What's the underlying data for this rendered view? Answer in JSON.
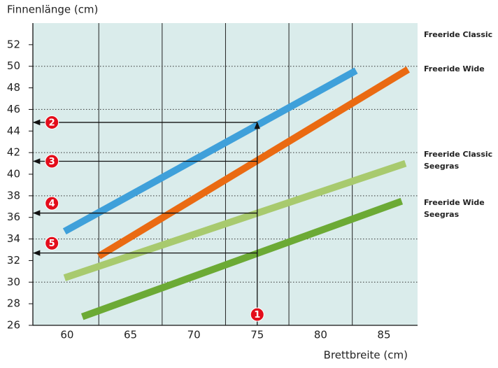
{
  "chart_data": {
    "type": "line",
    "ylabel": "Finnenlänge (cm)",
    "xlabel": "Brettbreite (cm)",
    "series": [
      {
        "name": "Freeride Classic",
        "color": "#3fa0da",
        "x": [
          59.8,
          82.8
        ],
        "values": [
          34.7,
          49.6
        ]
      },
      {
        "name": "Freeride Wide",
        "color": "#ea6a12",
        "x": [
          62.5,
          86.9
        ],
        "values": [
          32.4,
          49.7
        ]
      },
      {
        "name": "Freeride Classic Seegras",
        "color": "#a8ca6e",
        "x": [
          59.8,
          86.7
        ],
        "values": [
          30.4,
          41.0
        ]
      },
      {
        "name": "Freeride Wide Seegras",
        "color": "#6caa35",
        "x": [
          61.2,
          86.4
        ],
        "values": [
          26.8,
          37.5
        ]
      }
    ],
    "xlim": [
      57.3,
      87.65
    ],
    "ylim": [
      26,
      54
    ],
    "xticks": [
      60,
      65,
      70,
      75,
      80,
      85
    ],
    "yticks": [
      26,
      28,
      30,
      32,
      34,
      36,
      38,
      40,
      42,
      44,
      46,
      48,
      50,
      52
    ],
    "xgrid": [
      62.5,
      67.5,
      72.5,
      77.5,
      82.5
    ],
    "ygrid": [
      30,
      34,
      38,
      42,
      46,
      50
    ],
    "guides": {
      "x": 75,
      "levels": [
        44.8,
        41.2,
        36.4,
        32.7
      ]
    },
    "annotations": [
      {
        "label": "1",
        "x": 75,
        "y": 27
      },
      {
        "label": "2",
        "x": 58.8,
        "y": 44.8
      },
      {
        "label": "3",
        "x": 58.8,
        "y": 41.2
      },
      {
        "label": "4",
        "x": 58.8,
        "y": 37.3
      },
      {
        "label": "5",
        "x": 58.8,
        "y": 33.6
      }
    ]
  }
}
